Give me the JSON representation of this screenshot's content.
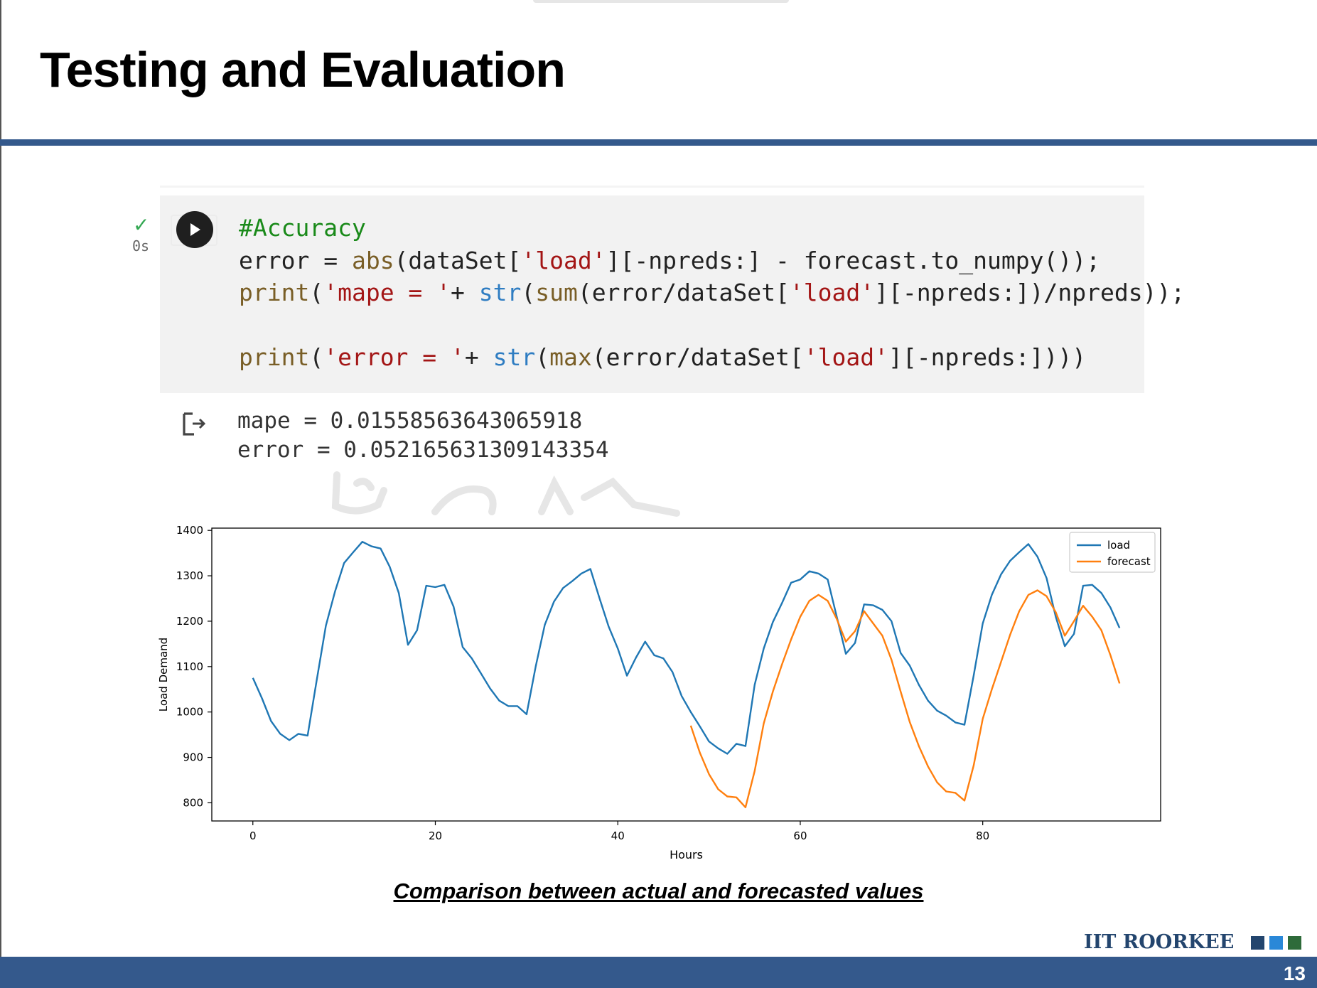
{
  "slide": {
    "title": "Testing and Evaluation",
    "caption": "Comparison between actual and forecasted values",
    "logo_text": "IIT ROORKEE",
    "page_number": "13"
  },
  "cell": {
    "status_time": "0s",
    "run_icon": "play-icon",
    "code_lines": [
      "#Accuracy",
      "error = abs(dataSet['load'][-npreds:] - forecast.to_numpy());",
      "print('mape = '+ str(sum(error/dataSet['load'][-npreds:])/npreds));",
      "",
      "print('error = '+ str(max(error/dataSet['load'][-npreds:])))"
    ],
    "output_icon": "output-arrow-icon",
    "output_lines": [
      "mape = 0.015585636430659​18",
      "error = 0.05216563130914335​4"
    ]
  },
  "colors": {
    "accent": "#34598c",
    "load": "#1f77b4",
    "forecast": "#ff7f0e",
    "logo_squares": [
      "#23456e",
      "#2a88d8",
      "#2e6b3a"
    ]
  },
  "chart_data": {
    "type": "line",
    "xlabel": "Hours",
    "ylabel": "Load Demand",
    "xlim": [
      -4.5,
      99.5
    ],
    "ylim": [
      760,
      1405
    ],
    "xticks": [
      0,
      20,
      40,
      60,
      80
    ],
    "yticks": [
      800,
      900,
      1000,
      1100,
      1200,
      1300,
      1400
    ],
    "legend_position": "top-right",
    "grid": false,
    "series": [
      {
        "name": "load",
        "color": "#1f77b4",
        "x": [
          0,
          1,
          2,
          3,
          4,
          5,
          6,
          7,
          8,
          9,
          10,
          11,
          12,
          13,
          14,
          15,
          16,
          17,
          18,
          19,
          20,
          21,
          22,
          23,
          24,
          25,
          26,
          27,
          28,
          29,
          30,
          31,
          32,
          33,
          34,
          35,
          36,
          37,
          38,
          39,
          40,
          41,
          42,
          43,
          44,
          45,
          46,
          47,
          48,
          49,
          50,
          51,
          52,
          53,
          54,
          55,
          56,
          57,
          58,
          59,
          60,
          61,
          62,
          63,
          64,
          65,
          66,
          67,
          68,
          69,
          70,
          71,
          72,
          73,
          74,
          75,
          76,
          77,
          78,
          79,
          80,
          81,
          82,
          83,
          84,
          85,
          86,
          87,
          88,
          89,
          90,
          91,
          92,
          93,
          94,
          95
        ],
        "values": [
          1075,
          1030,
          980,
          952,
          938,
          952,
          948,
          1070,
          1190,
          1265,
          1328,
          1352,
          1375,
          1365,
          1360,
          1320,
          1262,
          1148,
          1180,
          1278,
          1275,
          1280,
          1232,
          1143,
          1118,
          1085,
          1052,
          1025,
          1013,
          1013,
          995,
          1100,
          1192,
          1243,
          1273,
          1288,
          1305,
          1315,
          1250,
          1188,
          1140,
          1080,
          1120,
          1155,
          1125,
          1118,
          1088,
          1035,
          1000,
          968,
          935,
          920,
          908,
          930,
          925,
          1060,
          1140,
          1198,
          1240,
          1285,
          1292,
          1310,
          1305,
          1292,
          1210,
          1128,
          1152,
          1237,
          1235,
          1225,
          1200,
          1130,
          1102,
          1060,
          1025,
          1003,
          992,
          977,
          972,
          1080,
          1195,
          1258,
          1303,
          1333,
          1352,
          1370,
          1342,
          1295,
          1210,
          1145,
          1172,
          1278,
          1280,
          1262,
          1230,
          1185
        ]
      },
      {
        "name": "forecast",
        "color": "#ff7f0e",
        "x": [
          48,
          49,
          50,
          51,
          52,
          53,
          54,
          55,
          56,
          57,
          58,
          59,
          60,
          61,
          62,
          63,
          64,
          65,
          66,
          67,
          68,
          69,
          70,
          71,
          72,
          73,
          74,
          75,
          76,
          77,
          78,
          79,
          80,
          81,
          82,
          83,
          84,
          85,
          86,
          87,
          88,
          89,
          90,
          91,
          92,
          93,
          94,
          95
        ],
        "values": [
          970,
          910,
          863,
          830,
          814,
          812,
          790,
          870,
          975,
          1045,
          1105,
          1160,
          1210,
          1245,
          1258,
          1245,
          1205,
          1155,
          1178,
          1222,
          1195,
          1168,
          1115,
          1045,
          978,
          925,
          880,
          845,
          825,
          822,
          805,
          882,
          985,
          1050,
          1110,
          1170,
          1222,
          1258,
          1268,
          1255,
          1220,
          1168,
          1200,
          1234,
          1210,
          1180,
          1125,
          1063
        ]
      }
    ]
  }
}
